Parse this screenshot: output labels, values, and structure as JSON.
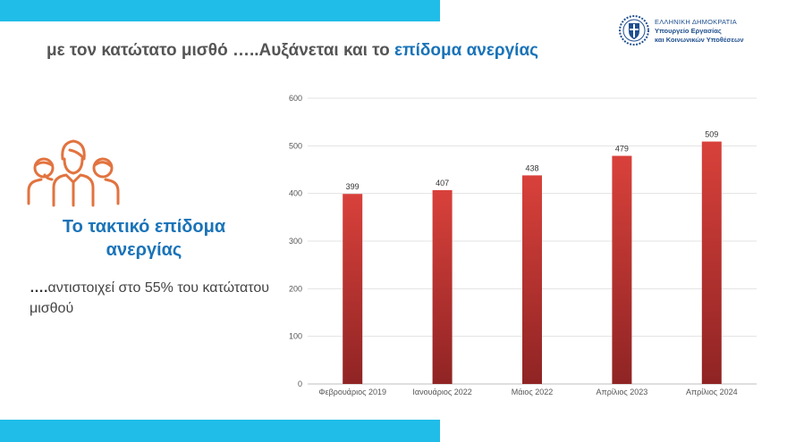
{
  "slide": {
    "title_prefix": "με τον κατώτατο μισθό …..Αυξάνεται και το ",
    "title_accent": "επίδομα ανεργίας",
    "colors": {
      "accent_blue": "#1a73b8",
      "bar_cyan": "#20bde8",
      "bar_red": "#c0392b",
      "icon_orange": "#e2733f"
    }
  },
  "logo": {
    "line1": "ΕΛΛΗΝΙΚΗ ΔΗΜΟΚΡΑΤΙΑ",
    "line2": "Υπουργείο Εργασίας",
    "line3": "και Κοινωνικών Υποθέσεων",
    "icon": "greek-coat-of-arms-icon"
  },
  "left_panel": {
    "icon": "people-group-icon",
    "heading": "Το τακτικό επίδομα ανεργίας",
    "description_bold": "….",
    "description": "αντιστοιχεί στο 55% του κατώτατου μισθού"
  },
  "chart_data": {
    "type": "bar",
    "categories": [
      "Φεβρουάριος 2019",
      "Ιανουάριος 2022",
      "Μάιος 2022",
      "Απρίλιος 2023",
      "Απρίλιος 2024"
    ],
    "values": [
      399,
      407,
      438,
      479,
      509
    ],
    "data_labels": [
      "399",
      "407",
      "438",
      "479",
      "509"
    ],
    "ylim": [
      0,
      600
    ],
    "yticks": [
      0,
      100,
      200,
      300,
      400,
      500,
      600
    ],
    "grid": true,
    "legend": "none",
    "title": "",
    "xlabel": "",
    "ylabel": ""
  }
}
